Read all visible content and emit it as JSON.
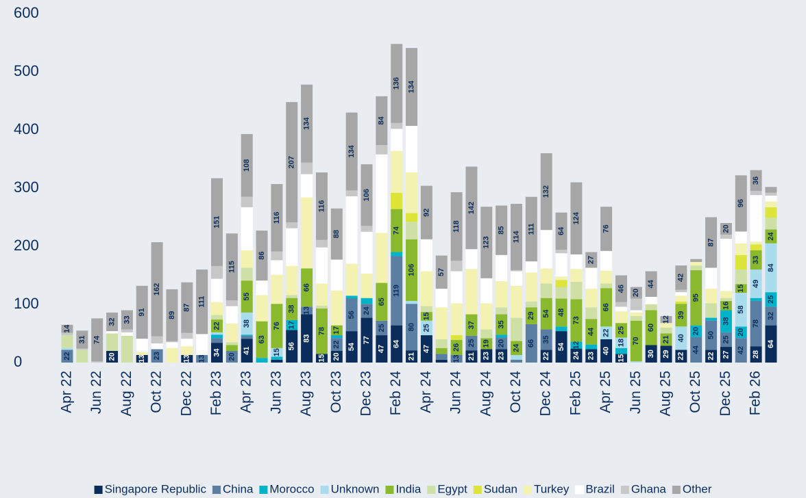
{
  "chart_data": {
    "type": "stacked_bar",
    "categories": [
      "Apr 22",
      null,
      "Jun 22",
      null,
      "Aug 22",
      null,
      "Oct 22",
      null,
      "Dec 22",
      null,
      "Feb 23",
      null,
      "Apr 23",
      null,
      "Jun 23",
      null,
      "Aug 23",
      null,
      "Oct 23",
      null,
      "Dec 23",
      null,
      "Feb 24",
      null,
      "Apr 24",
      null,
      "Jun 24",
      null,
      "Aug 24",
      null,
      "Oct 24",
      null,
      "Dec 24",
      null,
      "Feb 25",
      null,
      "Apr 25",
      null,
      "Jun 25",
      null,
      "Aug 25",
      null,
      "Oct 25",
      null,
      "Dec 25",
      null,
      "Feb 26",
      null
    ],
    "ylim": [
      0,
      600
    ],
    "yticks": [
      0,
      100,
      200,
      300,
      400,
      500,
      600
    ],
    "grid": false,
    "legend": "bottom",
    "series": [
      {
        "name": "Singapore Republic",
        "color": "#0b2d5b",
        "labels": true,
        "values": [
          0,
          0,
          0,
          20,
          0,
          13,
          0,
          0,
          13,
          0,
          34,
          0,
          41,
          0,
          5,
          56,
          83,
          15,
          20,
          54,
          77,
          47,
          64,
          21,
          47,
          5,
          0,
          21,
          23,
          23,
          0,
          0,
          22,
          54,
          24,
          23,
          40,
          15,
          0,
          30,
          29,
          22,
          0,
          22,
          27,
          0,
          28,
          64
        ]
      },
      {
        "name": "China",
        "color": "#5b7ea3",
        "labels": true,
        "values": [
          22,
          0,
          0,
          0,
          0,
          0,
          23,
          0,
          0,
          13,
          8,
          20,
          5,
          0,
          0,
          0,
          13,
          0,
          22,
          56,
          24,
          25,
          119,
          80,
          0,
          10,
          13,
          25,
          0,
          20,
          5,
          66,
          35,
          0,
          0,
          0,
          0,
          0,
          0,
          0,
          0,
          0,
          44,
          50,
          25,
          42,
          78,
          32
        ]
      },
      {
        "name": "Morocco",
        "color": "#00b3c8",
        "labels": true,
        "values": [
          0,
          0,
          0,
          0,
          0,
          0,
          0,
          0,
          0,
          0,
          6,
          0,
          2,
          8,
          5,
          17,
          0,
          0,
          5,
          5,
          10,
          0,
          7,
          0,
          0,
          0,
          0,
          0,
          0,
          5,
          0,
          0,
          0,
          8,
          12,
          8,
          0,
          10,
          0,
          0,
          0,
          0,
          20,
          5,
          38,
          20,
          5,
          25
        ]
      },
      {
        "name": "Unknown",
        "color": "#a9dcec",
        "labels": true,
        "values": [
          3,
          0,
          0,
          0,
          0,
          0,
          0,
          0,
          0,
          0,
          4,
          0,
          38,
          0,
          15,
          0,
          0,
          0,
          0,
          0,
          0,
          0,
          0,
          5,
          25,
          0,
          0,
          0,
          0,
          0,
          8,
          0,
          0,
          0,
          0,
          0,
          22,
          18,
          2,
          0,
          0,
          40,
          0,
          0,
          0,
          58,
          49,
          84
        ]
      },
      {
        "name": "India",
        "color": "#8ab92d",
        "labels": true,
        "values": [
          0,
          0,
          0,
          0,
          0,
          0,
          0,
          0,
          0,
          0,
          22,
          10,
          55,
          63,
          76,
          38,
          66,
          78,
          17,
          0,
          0,
          65,
          74,
          106,
          15,
          10,
          26,
          37,
          19,
          35,
          24,
          29,
          54,
          48,
          73,
          44,
          66,
          25,
          70,
          60,
          21,
          39,
          95,
          0,
          16,
          15,
          33,
          24
        ]
      },
      {
        "name": "Egypt",
        "color": "#cfe0a6",
        "labels": false,
        "values": [
          22,
          22,
          0,
          30,
          46,
          0,
          0,
          0,
          0,
          0,
          8,
          5,
          22,
          0,
          0,
          5,
          0,
          5,
          0,
          0,
          0,
          0,
          0,
          30,
          10,
          15,
          0,
          0,
          15,
          12,
          40,
          10,
          25,
          20,
          30,
          20,
          8,
          0,
          8,
          10,
          10,
          0,
          8,
          25,
          5,
          25,
          0,
          20
        ]
      },
      {
        "name": "Sudan",
        "color": "#dde43a",
        "labels": false,
        "values": [
          0,
          0,
          0,
          0,
          0,
          0,
          0,
          0,
          0,
          0,
          0,
          0,
          0,
          0,
          0,
          0,
          0,
          0,
          0,
          0,
          0,
          0,
          28,
          15,
          0,
          0,
          8,
          0,
          0,
          0,
          0,
          0,
          0,
          12,
          0,
          0,
          0,
          0,
          0,
          0,
          0,
          4,
          0,
          0,
          0,
          25,
          10,
          18
        ]
      },
      {
        "name": "Turkey",
        "color": "#f3f2b0",
        "labels": false,
        "values": [
          0,
          0,
          0,
          0,
          0,
          5,
          0,
          25,
          15,
          0,
          22,
          32,
          30,
          45,
          50,
          50,
          122,
          38,
          60,
          55,
          42,
          86,
          72,
          70,
          60,
          55,
          55,
          78,
          45,
          45,
          55,
          50,
          26,
          6,
          22,
          32,
          22,
          20,
          6,
          0,
          8,
          10,
          6,
          25,
          12,
          20,
          5,
          10
        ]
      },
      {
        "name": "Brazil",
        "color": "#ffffff",
        "labels": false,
        "values": [
          0,
          0,
          0,
          4,
          6,
          23,
          10,
          10,
          13,
          36,
          40,
          30,
          74,
          25,
          25,
          65,
          40,
          62,
          53,
          116,
          72,
          135,
          38,
          80,
          55,
          32,
          55,
          34,
          43,
          45,
          25,
          19,
          66,
          40,
          25,
          36,
          34,
          8,
          4,
          13,
          0,
          6,
          0,
          36,
          90,
          20,
          80,
          10
        ]
      },
      {
        "name": "Ghana",
        "color": "#c7c7c7",
        "labels": false,
        "values": [
          4,
          2,
          2,
          0,
          5,
          0,
          12,
          2,
          10,
          0,
          22,
          10,
          18,
          0,
          15,
          10,
          20,
          13,
          0,
          10,
          10,
          16,
          10,
          0,
          0,
          0,
          18,
          0,
          0,
          0,
          2,
          0,
          0,
          6,
          0,
          0,
          0,
          8,
          20,
          0,
          0,
          4,
          0,
          0,
          7,
          1,
          7,
          5
        ]
      },
      {
        "name": "Other",
        "color": "#a6a6a6",
        "labels": true,
        "values": [
          14,
          31,
          74,
          32,
          33,
          91,
          162,
          89,
          87,
          111,
          151,
          115,
          108,
          86,
          116,
          207,
          134,
          116,
          88,
          134,
          106,
          84,
          136,
          134,
          92,
          57,
          118,
          142,
          123,
          85,
          114,
          111,
          132,
          64,
          124,
          27,
          76,
          46,
          20,
          44,
          12,
          42,
          5,
          87,
          20,
          96,
          36,
          10
        ]
      }
    ]
  }
}
